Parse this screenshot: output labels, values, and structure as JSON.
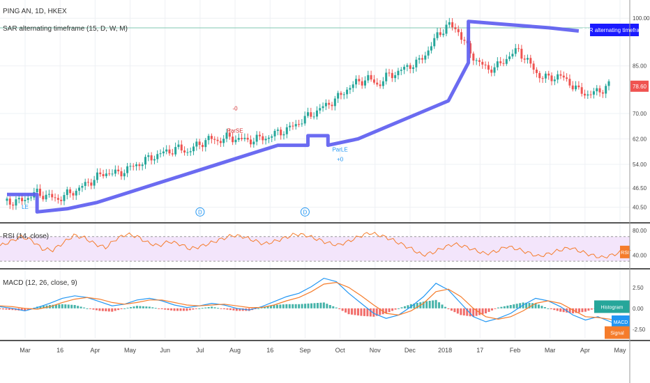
{
  "header": {
    "symbol_line": "PING AN, 1D, HKEX",
    "indicator_line": "SAR alternating timeframe (15, D, W, M)"
  },
  "colors": {
    "up": "#26a69a",
    "down": "#ef5350",
    "sar": "#5b5bf0",
    "rsi": "#f57c2b",
    "rsi_band": "#f3e5fb",
    "macd": "#2196f3",
    "signal": "#f57c2b",
    "hist_up": "#26a69a",
    "hist_down": "#ef5350",
    "price_tag": "#ef5350",
    "tag_blue": "#1a1aff"
  },
  "chart_data": [
    {
      "type": "candlestick",
      "title": "PING AN, 1D, HKEX",
      "ylim": [
        36,
        104
      ],
      "price_ticks": [
        "100.00",
        "85.00",
        "70.00",
        "62.00",
        "54.00",
        "46.50",
        "40.50"
      ],
      "last_price": "78.60",
      "x_ticks": [
        "Mar",
        "16",
        "Apr",
        "May",
        "Jun",
        "Jul",
        "Aug",
        "16",
        "Sep",
        "Oct",
        "Nov",
        "Dec",
        "2018",
        "17",
        "Feb",
        "Mar",
        "Apr",
        "May"
      ],
      "sar_label": "SAR alternating timeframe",
      "annotations": [
        {
          "text": "-0",
          "x": "Aug",
          "y": 71
        },
        {
          "text": "ParSE",
          "x": "Aug",
          "y": 64
        },
        {
          "text": "ParLE",
          "x": "Oct",
          "y": 58
        },
        {
          "text": "+0",
          "x": "Oct",
          "y": 55
        },
        {
          "text": "LE",
          "x": "Mar",
          "y": 40
        },
        {
          "text": "D",
          "x": "Jul",
          "y": 39
        },
        {
          "text": "D",
          "x": "Sep",
          "y": 39
        }
      ],
      "close_path": [
        [
          0,
          42.5
        ],
        [
          10,
          42
        ],
        [
          20,
          43.5
        ],
        [
          30,
          45
        ],
        [
          40,
          44
        ],
        [
          50,
          43
        ],
        [
          60,
          44.5
        ],
        [
          70,
          46
        ],
        [
          80,
          48
        ],
        [
          90,
          50
        ],
        [
          100,
          51.5
        ],
        [
          110,
          51
        ],
        [
          120,
          52.5
        ],
        [
          130,
          54
        ],
        [
          140,
          55.5
        ],
        [
          150,
          57
        ],
        [
          160,
          58
        ],
        [
          170,
          59
        ],
        [
          180,
          58
        ],
        [
          190,
          60
        ],
        [
          200,
          62
        ],
        [
          210,
          61.5
        ],
        [
          220,
          62.5
        ],
        [
          230,
          62
        ],
        [
          240,
          61.5
        ],
        [
          250,
          62
        ],
        [
          260,
          62.5
        ],
        [
          270,
          64
        ],
        [
          280,
          65
        ],
        [
          290,
          67
        ],
        [
          300,
          69
        ],
        [
          310,
          71
        ],
        [
          320,
          73
        ],
        [
          330,
          75
        ],
        [
          340,
          78
        ],
        [
          350,
          80
        ],
        [
          360,
          81
        ],
        [
          370,
          79
        ],
        [
          380,
          82
        ],
        [
          390,
          83
        ],
        [
          400,
          85
        ],
        [
          410,
          86
        ],
        [
          420,
          90
        ],
        [
          430,
          95
        ],
        [
          440,
          98
        ],
        [
          450,
          96
        ],
        [
          460,
          90
        ],
        [
          470,
          86
        ],
        [
          480,
          84
        ],
        [
          490,
          85
        ],
        [
          500,
          88
        ],
        [
          510,
          90
        ],
        [
          520,
          86
        ],
        [
          530,
          82
        ],
        [
          540,
          81
        ],
        [
          550,
          82
        ],
        [
          560,
          80
        ],
        [
          570,
          77
        ],
        [
          580,
          76
        ],
        [
          590,
          77
        ],
        [
          600,
          79
        ]
      ],
      "sar_path": [
        [
          0,
          44.5
        ],
        [
          30,
          44.5
        ],
        [
          30,
          39
        ],
        [
          60,
          40
        ],
        [
          90,
          42
        ],
        [
          120,
          45
        ],
        [
          150,
          48
        ],
        [
          180,
          51
        ],
        [
          210,
          54
        ],
        [
          240,
          57
        ],
        [
          270,
          60
        ],
        [
          300,
          60
        ],
        [
          300,
          63
        ],
        [
          320,
          63
        ],
        [
          320,
          60
        ],
        [
          350,
          62
        ],
        [
          380,
          66
        ],
        [
          410,
          70
        ],
        [
          440,
          74
        ],
        [
          460,
          86
        ],
        [
          460,
          99
        ],
        [
          500,
          98
        ],
        [
          540,
          97
        ],
        [
          570,
          96
        ]
      ]
    },
    {
      "type": "line",
      "title": "RSI (14, close)",
      "ylim": [
        20,
        90
      ],
      "ticks": [
        "80.00",
        "40.00"
      ],
      "band": [
        30,
        70
      ],
      "series_label": "RSI",
      "values": [
        55,
        62,
        70,
        64,
        50,
        48,
        60,
        72,
        68,
        58,
        52,
        66,
        74,
        70,
        60,
        55,
        62,
        58,
        50,
        54,
        60,
        66,
        72,
        70,
        64,
        58,
        62,
        68,
        74,
        72,
        66,
        60,
        56,
        62,
        70,
        76,
        72,
        66,
        58,
        50,
        40,
        44,
        52,
        58,
        54,
        48,
        42,
        46,
        54,
        50,
        44,
        38,
        42,
        48,
        52,
        46,
        40,
        36,
        40,
        46
      ]
    },
    {
      "type": "line",
      "title": "MACD (12, 26, close, 9)",
      "ylim": [
        -3.6,
        4.4
      ],
      "ticks": [
        "2.50",
        "0.00",
        "-2.50"
      ],
      "series": [
        {
          "name": "MACD",
          "values": [
            0.2,
            0.0,
            -0.3,
            0.1,
            0.6,
            1.2,
            1.5,
            1.3,
            0.8,
            0.3,
            0.5,
            1.0,
            1.2,
            0.9,
            0.4,
            0.1,
            0.3,
            0.6,
            0.4,
            0.0,
            -0.2,
            0.2,
            0.8,
            1.4,
            1.8,
            2.6,
            3.6,
            3.2,
            1.8,
            0.6,
            -0.6,
            -1.2,
            -0.8,
            0.2,
            1.4,
            3.0,
            2.2,
            0.6,
            -1.0,
            -1.6,
            -1.2,
            -0.6,
            0.4,
            1.2,
            0.9,
            0.2,
            -0.8,
            -1.4,
            -1.0,
            -1.6,
            -2.2
          ]
        },
        {
          "name": "Signal",
          "values": [
            0.3,
            0.2,
            0.0,
            -0.1,
            0.2,
            0.7,
            1.1,
            1.3,
            1.1,
            0.7,
            0.5,
            0.7,
            1.0,
            1.0,
            0.7,
            0.4,
            0.3,
            0.4,
            0.5,
            0.3,
            0.1,
            0.1,
            0.4,
            0.9,
            1.3,
            2.0,
            2.9,
            3.1,
            2.5,
            1.5,
            0.4,
            -0.6,
            -0.8,
            -0.3,
            0.6,
            2.0,
            2.3,
            1.4,
            0.0,
            -1.0,
            -1.3,
            -1.0,
            -0.3,
            0.6,
            0.9,
            0.6,
            -0.2,
            -1.0,
            -1.1,
            -1.3,
            -1.8
          ]
        }
      ],
      "legend": [
        "Histogram",
        "MACD",
        "Signal"
      ]
    }
  ]
}
